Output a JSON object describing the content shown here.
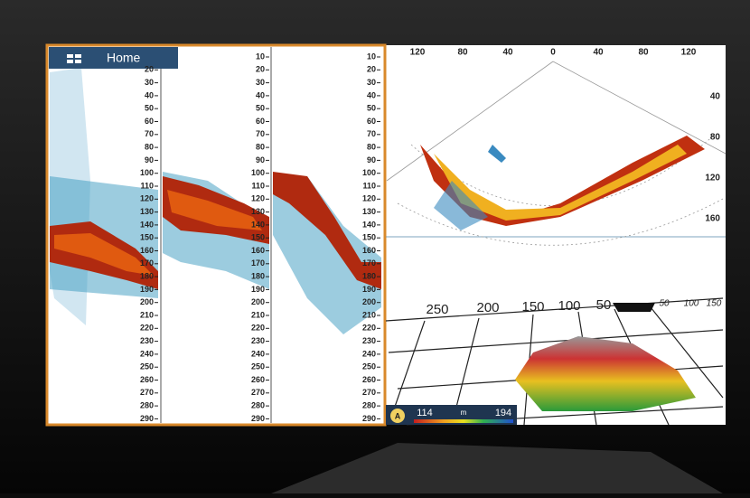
{
  "header": {
    "title": "Home"
  },
  "echogram": {
    "panels": [
      {
        "depth_labels": [
          20,
          30,
          40,
          50,
          60,
          70,
          80,
          90,
          100,
          110,
          120,
          130,
          140,
          150,
          160,
          170,
          180,
          190,
          200,
          210,
          220,
          230,
          240,
          250,
          260,
          270,
          280,
          290
        ]
      },
      {
        "depth_labels": [
          10,
          20,
          30,
          40,
          50,
          60,
          70,
          80,
          90,
          100,
          110,
          120,
          130,
          140,
          150,
          160,
          170,
          180,
          190,
          200,
          210,
          220,
          230,
          240,
          250,
          260,
          270,
          280,
          290
        ]
      },
      {
        "depth_labels": [
          10,
          20,
          30,
          40,
          50,
          60,
          70,
          80,
          90,
          100,
          110,
          120,
          130,
          140,
          150,
          160,
          170,
          180,
          190,
          200,
          210,
          220,
          230,
          240,
          250,
          260,
          270,
          280,
          290
        ]
      }
    ]
  },
  "sonar": {
    "range_labels": [
      120,
      80,
      40,
      0,
      40,
      80,
      120
    ],
    "depth_labels": [
      40,
      80,
      120,
      160
    ]
  },
  "view3d": {
    "range_labels": [
      250,
      200,
      150,
      100,
      50,
      50,
      100,
      150
    ]
  },
  "legend": {
    "mode": "A",
    "min": 114,
    "unit": "m",
    "max": 194
  }
}
